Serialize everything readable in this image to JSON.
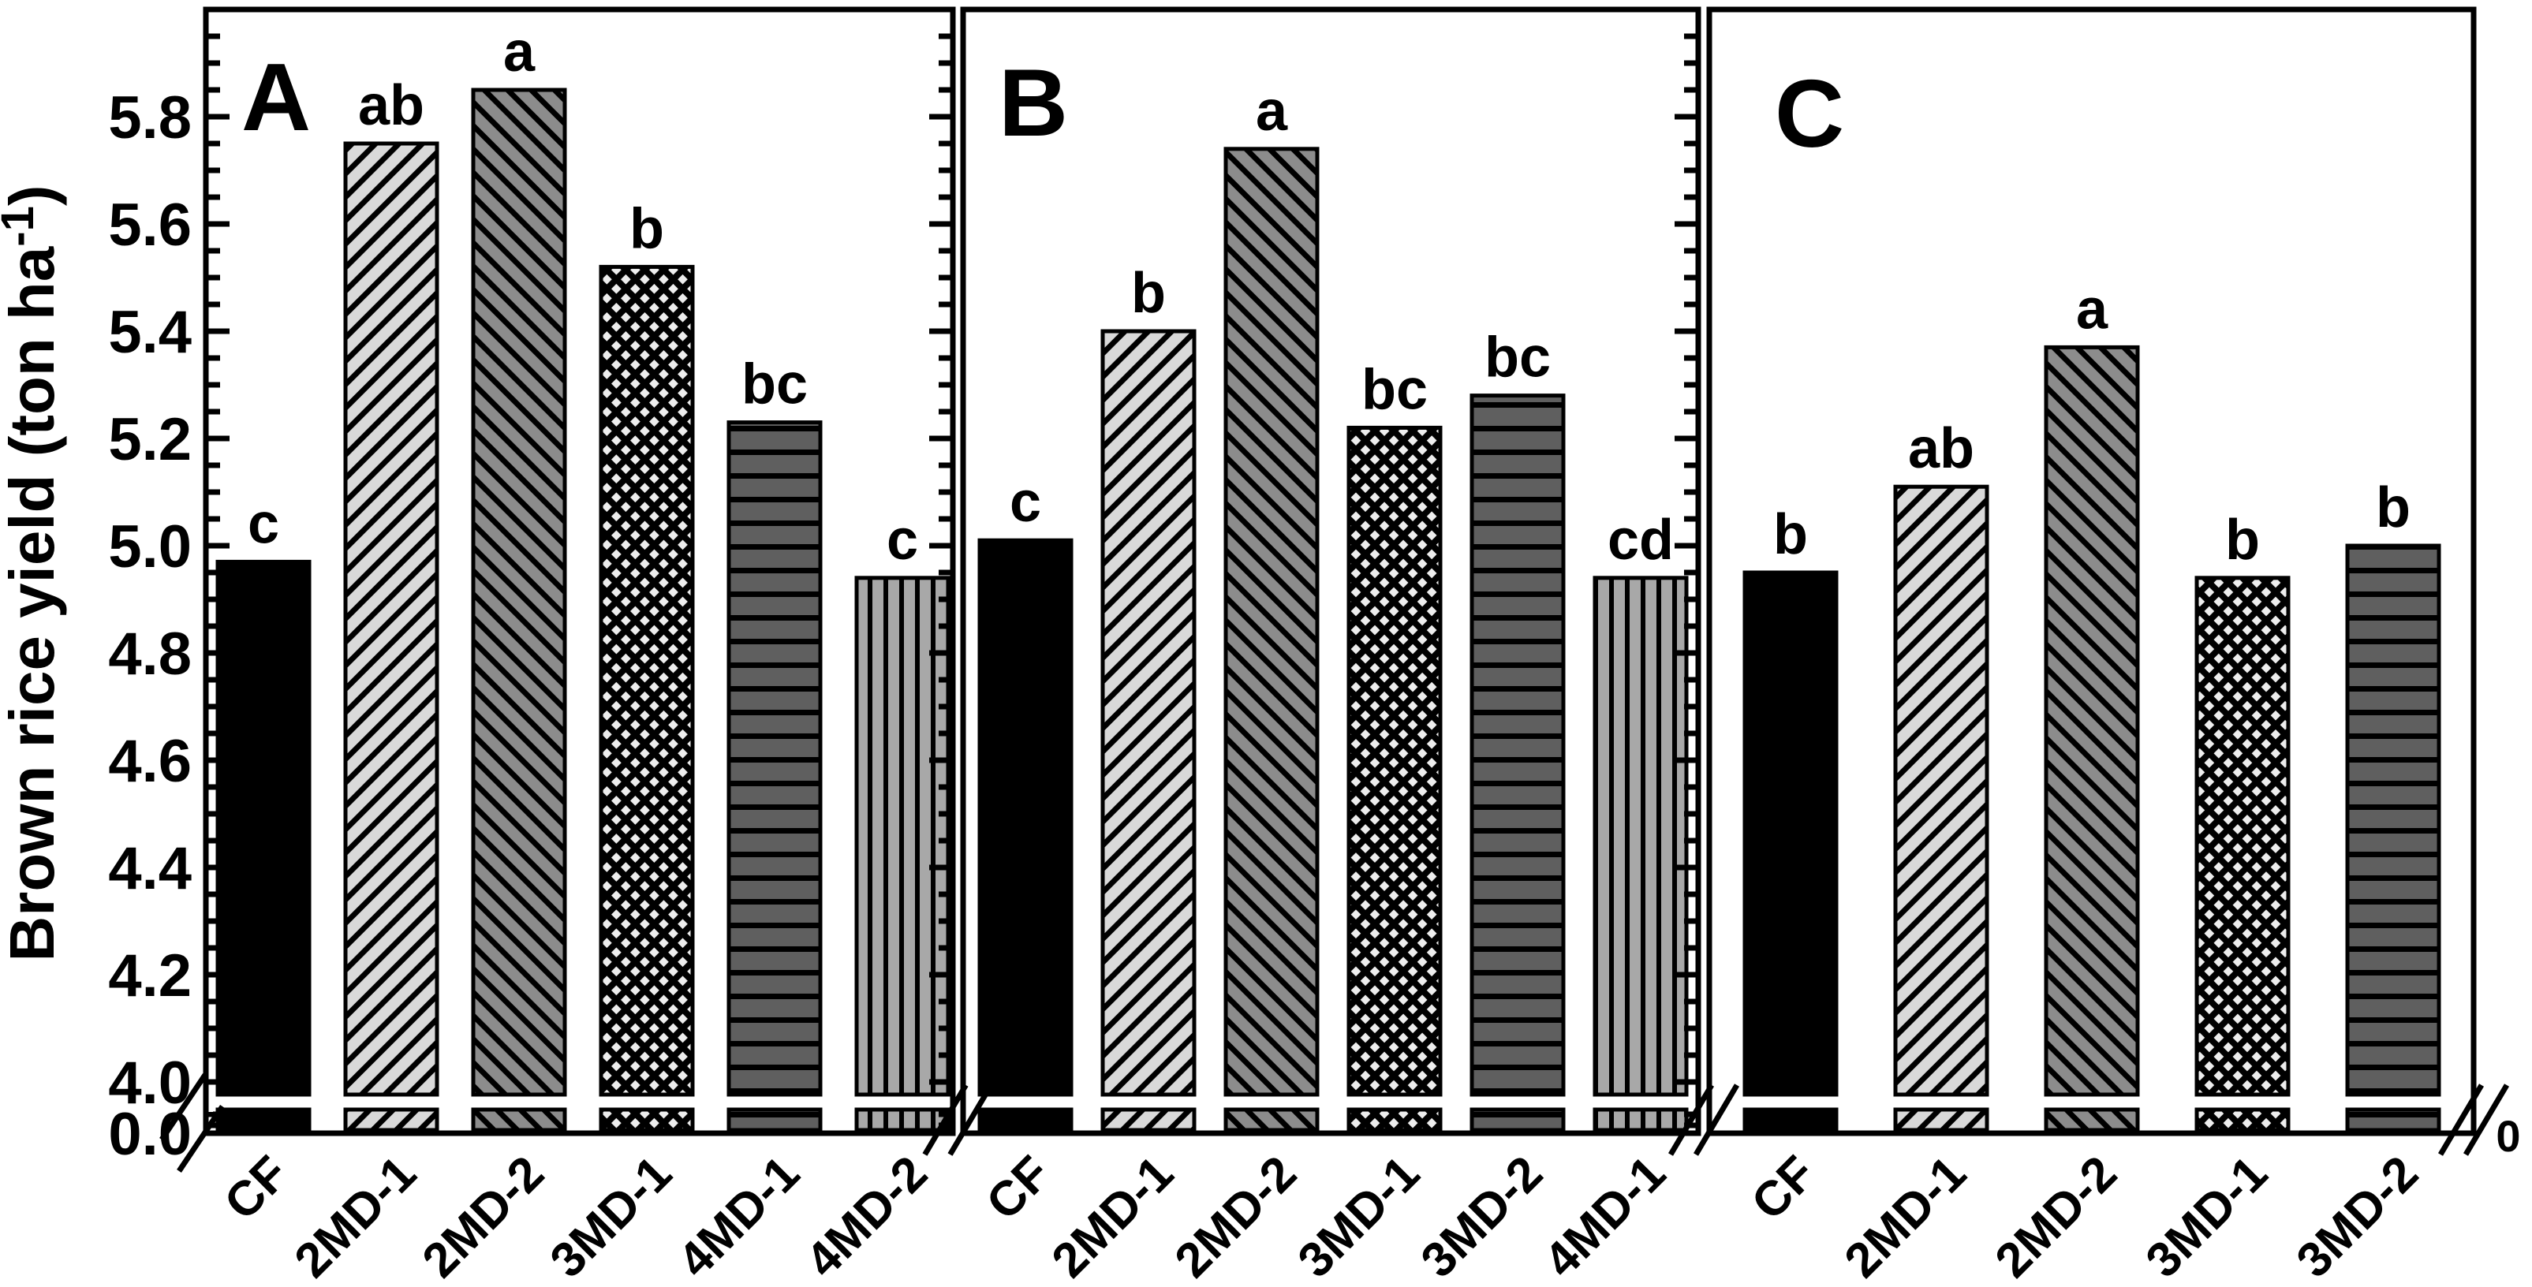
{
  "figure": {
    "y_axis": {
      "title_main": "Brown rice yield (ton ha",
      "title_sup": "-1",
      "title_close": ")",
      "major_tick_labels": [
        "4.0",
        "4.2",
        "4.4",
        "4.6",
        "4.8",
        "5.0",
        "5.2",
        "5.4",
        "5.6",
        "5.8"
      ],
      "zero_label": "0.0",
      "right_end_zero_label": "0"
    }
  },
  "chart_data": {
    "type": "bar",
    "title": "",
    "xlabel": "",
    "ylabel": "Brown rice yield (ton ha-1)",
    "ylim": [
      4.0,
      6.0
    ],
    "broken_axis_at": 0.0,
    "y_major_step": 0.2,
    "y_minor_step": 0.05,
    "grid": false,
    "legend_position": "none",
    "axis_color": "#000000",
    "panels": [
      {
        "label": "A",
        "categories": [
          "CF",
          "2MD-1",
          "2MD-2",
          "3MD-1",
          "4MD-1",
          "4MD-2"
        ],
        "values": [
          4.97,
          5.75,
          5.85,
          5.52,
          5.23,
          4.94
        ],
        "sig_letters": [
          "c",
          "ab",
          "a",
          "b",
          "bc",
          "c"
        ]
      },
      {
        "label": "B",
        "categories": [
          "CF",
          "2MD-1",
          "2MD-2",
          "3MD-1",
          "3MD-2",
          "4MD-1"
        ],
        "values": [
          5.01,
          5.4,
          5.74,
          5.22,
          5.28,
          4.94
        ],
        "sig_letters": [
          "c",
          "b",
          "a",
          "bc",
          "bc",
          "cd"
        ]
      },
      {
        "label": "C",
        "categories": [
          "CF",
          "2MD-1",
          "2MD-2",
          "3MD-1",
          "3MD-2"
        ],
        "values": [
          4.95,
          5.11,
          5.37,
          4.94,
          5.0
        ],
        "sig_letters": [
          "b",
          "ab",
          "a",
          "b",
          "b"
        ]
      }
    ],
    "bar_styles": [
      {
        "name": "solid-black",
        "bg": "#000000",
        "hatch": "none"
      },
      {
        "name": "light-gray-diag-up",
        "bg": "#d9d9d9",
        "hatch": "diag-up"
      },
      {
        "name": "gray-diag-down",
        "bg": "#8c8c8c",
        "hatch": "diag-down"
      },
      {
        "name": "diamond-crosshatch",
        "bg": "#ededed",
        "hatch": "diamond"
      },
      {
        "name": "dark-gray-horizontal",
        "bg": "#5f5f5f",
        "hatch": "horizontal"
      },
      {
        "name": "gray-vertical",
        "bg": "#a8a8a8",
        "hatch": "vertical"
      }
    ]
  }
}
